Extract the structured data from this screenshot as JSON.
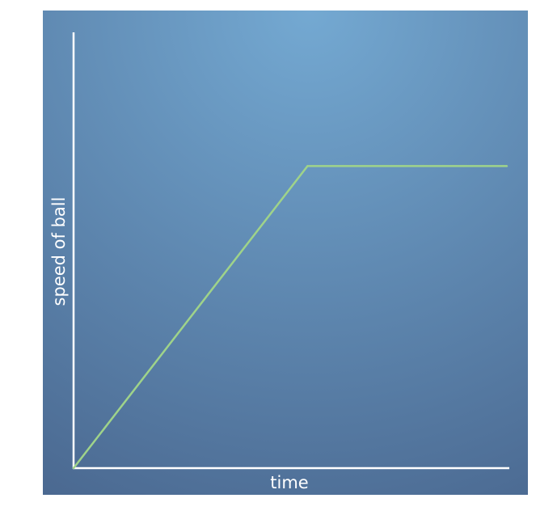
{
  "chart_data": {
    "type": "line",
    "xlabel": "time",
    "ylabel": "speed of ball",
    "xlim": [
      0,
      100
    ],
    "ylim": [
      0,
      100
    ],
    "grid": false,
    "series": [
      {
        "x": [
          0,
          54,
          100
        ],
        "values": [
          0,
          66,
          66
        ]
      }
    ]
  },
  "colors": {
    "background_center": "#74a9d2",
    "background_edge": "#4a6890",
    "axis": "#ffffff",
    "line": "#9fd38a"
  }
}
